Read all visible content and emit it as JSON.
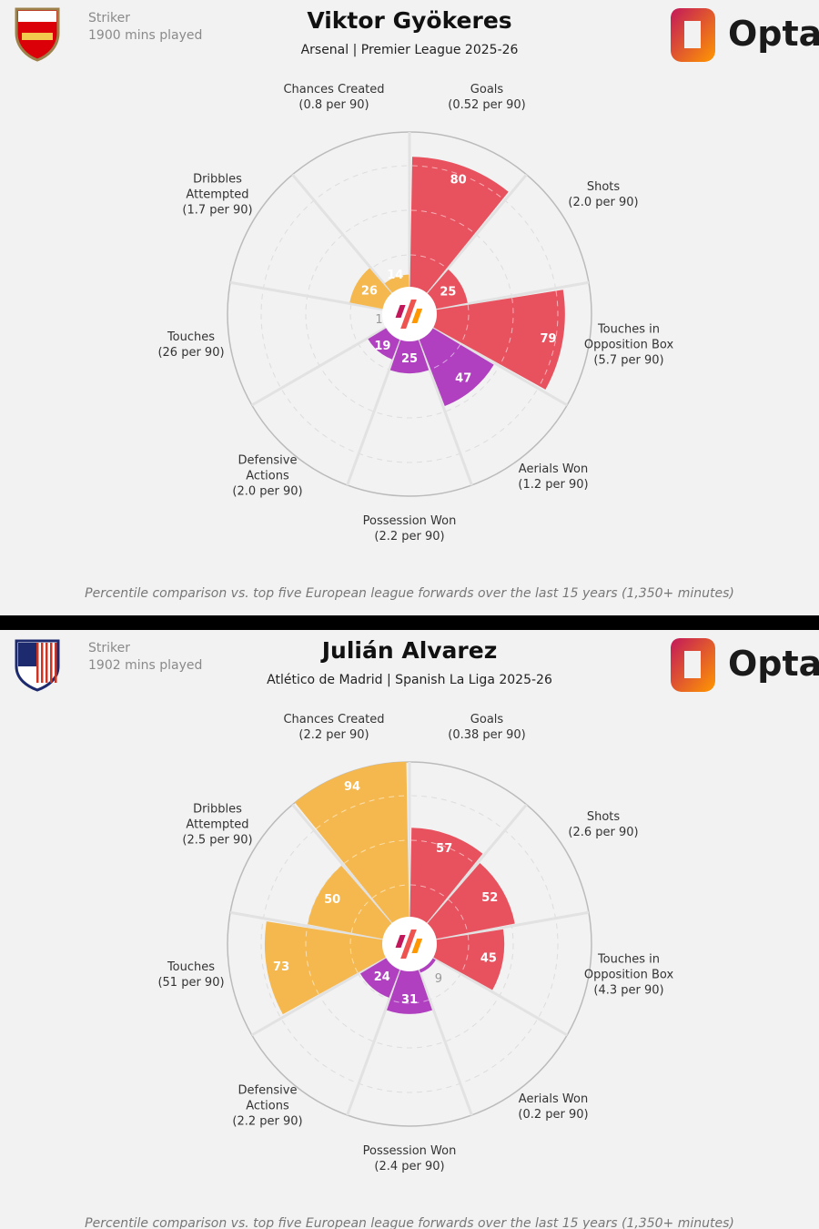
{
  "colors": {
    "attacking": "#e8525f",
    "defending": "#b040c0",
    "possession": "#f5b84e",
    "background": "#f2f2f2"
  },
  "footnote": "Percentile comparison vs. top five European league forwards over the last 15 years (1,350+ minutes)",
  "logo": "Opta",
  "chart_data": [
    {
      "type": "polar-area",
      "player": "Viktor Gyökeres",
      "role": "Striker",
      "minutes": "1900 mins played",
      "subtitle": "Arsenal | Premier League 2025-26",
      "crest-icon": "arsenal-crest",
      "categories": [
        {
          "name": "Goals",
          "per90": "(0.52 per 90)",
          "group": "attacking",
          "value": 80
        },
        {
          "name": "Shots",
          "per90": "(2.0 per 90)",
          "group": "attacking",
          "value": 25
        },
        {
          "name": "Touches in Opposition Box",
          "per90": "(5.7 per 90)",
          "group": "attacking",
          "value": 79
        },
        {
          "name": "Aerials Won",
          "per90": "(1.2 per 90)",
          "group": "defending",
          "value": 47
        },
        {
          "name": "Possession Won",
          "per90": "(2.2 per 90)",
          "group": "defending",
          "value": 25
        },
        {
          "name": "Defensive Actions",
          "per90": "(2.0 per 90)",
          "group": "defending",
          "value": 19
        },
        {
          "name": "Touches",
          "per90": "(26 per 90)",
          "group": "possession",
          "value": 1
        },
        {
          "name": "Dribbles Attempted",
          "per90": "(1.7 per 90)",
          "group": "possession",
          "value": 26
        },
        {
          "name": "Chances Created",
          "per90": "(0.8 per 90)",
          "group": "possession",
          "value": 14
        }
      ],
      "rlim": [
        0,
        100
      ]
    },
    {
      "type": "polar-area",
      "player": "Julián Alvarez",
      "role": "Striker",
      "minutes": "1902 mins played",
      "subtitle": "Atlético de Madrid | Spanish La Liga 2025-26",
      "crest-icon": "atletico-crest",
      "categories": [
        {
          "name": "Goals",
          "per90": "(0.38 per 90)",
          "group": "attacking",
          "value": 57
        },
        {
          "name": "Shots",
          "per90": "(2.6 per 90)",
          "group": "attacking",
          "value": 52
        },
        {
          "name": "Touches in Opposition Box",
          "per90": "(4.3 per 90)",
          "group": "attacking",
          "value": 45
        },
        {
          "name": "Aerials Won",
          "per90": "(0.2 per 90)",
          "group": "defending",
          "value": 9
        },
        {
          "name": "Possession Won",
          "per90": "(2.4 per 90)",
          "group": "defending",
          "value": 31
        },
        {
          "name": "Defensive Actions",
          "per90": "(2.2 per 90)",
          "group": "defending",
          "value": 24
        },
        {
          "name": "Touches",
          "per90": "(51 per 90)",
          "group": "possession",
          "value": 73
        },
        {
          "name": "Dribbles Attempted",
          "per90": "(2.5 per 90)",
          "group": "possession",
          "value": 50
        },
        {
          "name": "Chances Created",
          "per90": "(2.2 per 90)",
          "group": "possession",
          "value": 94
        }
      ],
      "rlim": [
        0,
        100
      ]
    }
  ]
}
